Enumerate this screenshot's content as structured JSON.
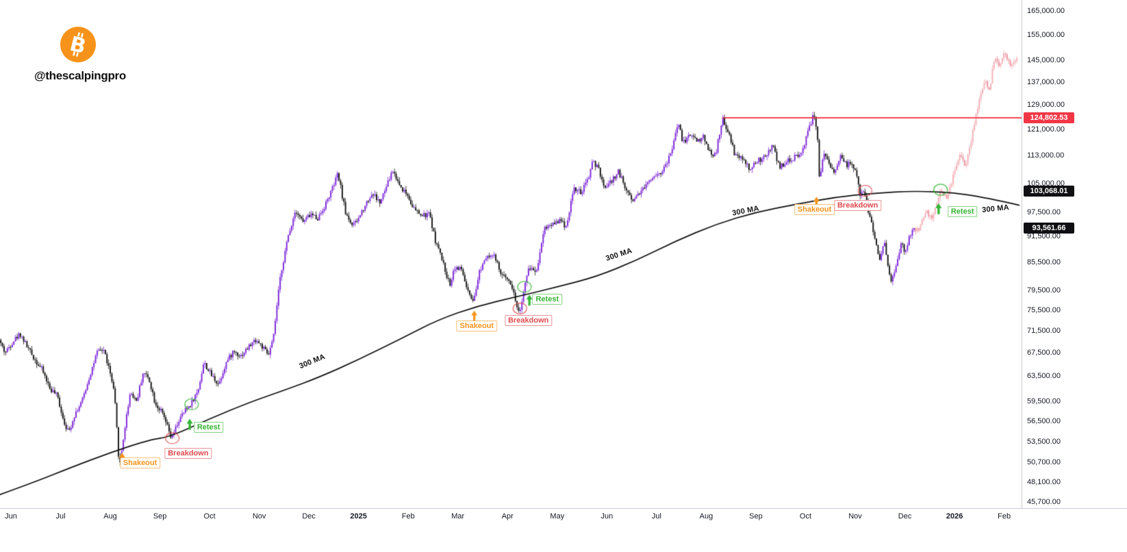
{
  "header": {
    "handle": "@thescalpingpro",
    "logo": {
      "icon": "bitcoin-icon",
      "color": "#f7931a",
      "glyph_color": "#ffffff"
    }
  },
  "chart_data": {
    "type": "candlestick",
    "scale": "log",
    "description": "Bitcoin daily price with 300 MA, Shakeout / Breakdown / Retest annotations and a projected pink path",
    "x_axis": {
      "labels": [
        {
          "text": "Jun",
          "m": 0
        },
        {
          "text": "Jul",
          "m": 1
        },
        {
          "text": "Aug",
          "m": 2
        },
        {
          "text": "Sep",
          "m": 3
        },
        {
          "text": "Oct",
          "m": 4
        },
        {
          "text": "Nov",
          "m": 5
        },
        {
          "text": "Dec",
          "m": 6
        },
        {
          "text": "2025",
          "m": 7,
          "bold": true
        },
        {
          "text": "Feb",
          "m": 8
        },
        {
          "text": "Mar",
          "m": 9
        },
        {
          "text": "Apr",
          "m": 10
        },
        {
          "text": "May",
          "m": 11
        },
        {
          "text": "Jun",
          "m": 12
        },
        {
          "text": "Jul",
          "m": 13
        },
        {
          "text": "Aug",
          "m": 14
        },
        {
          "text": "Sep",
          "m": 15
        },
        {
          "text": "Oct",
          "m": 16
        },
        {
          "text": "Nov",
          "m": 17
        },
        {
          "text": "Dec",
          "m": 18
        },
        {
          "text": "2026",
          "m": 19,
          "bold": true
        },
        {
          "text": "Feb",
          "m": 20
        }
      ]
    },
    "y_axis": {
      "ticks": [
        {
          "label": "165,000.00",
          "value": 165000
        },
        {
          "label": "155,000.00",
          "value": 155000
        },
        {
          "label": "145,000.00",
          "value": 145000
        },
        {
          "label": "137,000.00",
          "value": 137000
        },
        {
          "label": "129,000.00",
          "value": 129000
        },
        {
          "label": "121,000.00",
          "value": 121000
        },
        {
          "label": "113,000.00",
          "value": 113000
        },
        {
          "label": "105,000.00",
          "value": 105000
        },
        {
          "label": "97,500.00",
          "value": 97500
        },
        {
          "label": "91,500.00",
          "value": 91500
        },
        {
          "label": "85,500.00",
          "value": 85500
        },
        {
          "label": "79,500.00",
          "value": 79500
        },
        {
          "label": "75,500.00",
          "value": 75500
        },
        {
          "label": "71,500.00",
          "value": 71500
        },
        {
          "label": "67,500.00",
          "value": 67500
        },
        {
          "label": "63,500.00",
          "value": 63500
        },
        {
          "label": "59,500.00",
          "value": 59500
        },
        {
          "label": "56,500.00",
          "value": 56500
        },
        {
          "label": "53,500.00",
          "value": 53500
        },
        {
          "label": "50,700.00",
          "value": 50700
        },
        {
          "label": "48,100.00",
          "value": 48100
        },
        {
          "label": "45,700.00",
          "value": 45700
        }
      ]
    },
    "price_badges": [
      {
        "label": "124,802.53",
        "value": 124802.53,
        "bg": "#f23645",
        "fg": "#ffffff"
      },
      {
        "label": "103,068.01",
        "value": 103068.01,
        "bg": "#101014",
        "fg": "#ffffff"
      },
      {
        "label": "93,561.66",
        "value": 93561.66,
        "bg": "#101014",
        "fg": "#ffffff"
      }
    ],
    "horizontal_line": {
      "price": 124802.53,
      "from_m": 14.33,
      "color": "#f23645"
    },
    "series": [
      {
        "name": "BTC price history",
        "style": "candles",
        "up_color": "#7c24d8",
        "down_color": "#141414",
        "seed": 42,
        "final_close": 93561.66,
        "anchors": [
          [
            -0.22,
            69800
          ],
          [
            -0.1,
            67500
          ],
          [
            0.05,
            69500
          ],
          [
            0.2,
            71000
          ],
          [
            0.35,
            68500
          ],
          [
            0.5,
            66300
          ],
          [
            0.65,
            64500
          ],
          [
            0.8,
            61500
          ],
          [
            0.95,
            60300
          ],
          [
            1.08,
            56500
          ],
          [
            1.18,
            54800
          ],
          [
            1.3,
            57500
          ],
          [
            1.45,
            59500
          ],
          [
            1.6,
            63500
          ],
          [
            1.75,
            67500
          ],
          [
            1.88,
            68200
          ],
          [
            2.0,
            64500
          ],
          [
            2.1,
            60500
          ],
          [
            2.2,
            49800
          ],
          [
            2.3,
            55000
          ],
          [
            2.42,
            61000
          ],
          [
            2.55,
            59500
          ],
          [
            2.68,
            64200
          ],
          [
            2.8,
            63000
          ],
          [
            2.92,
            59200
          ],
          [
            3.05,
            57800
          ],
          [
            3.15,
            56000
          ],
          [
            3.25,
            53800
          ],
          [
            3.38,
            56300
          ],
          [
            3.5,
            57800
          ],
          [
            3.63,
            59000
          ],
          [
            3.78,
            61000
          ],
          [
            3.9,
            65800
          ],
          [
            4.05,
            63700
          ],
          [
            4.2,
            62200
          ],
          [
            4.35,
            65800
          ],
          [
            4.5,
            67800
          ],
          [
            4.65,
            67000
          ],
          [
            4.8,
            68500
          ],
          [
            4.95,
            69900
          ],
          [
            5.1,
            68300
          ],
          [
            5.2,
            67000
          ],
          [
            5.3,
            70000
          ],
          [
            5.45,
            83000
          ],
          [
            5.6,
            91500
          ],
          [
            5.75,
            98200
          ],
          [
            5.9,
            95000
          ],
          [
            6.05,
            97000
          ],
          [
            6.2,
            96000
          ],
          [
            6.35,
            99500
          ],
          [
            6.5,
            104000
          ],
          [
            6.6,
            107800
          ],
          [
            6.75,
            97500
          ],
          [
            6.9,
            94000
          ],
          [
            7.0,
            95500
          ],
          [
            7.15,
            99500
          ],
          [
            7.3,
            102500
          ],
          [
            7.45,
            99800
          ],
          [
            7.6,
            105000
          ],
          [
            7.7,
            108800
          ],
          [
            7.85,
            104500
          ],
          [
            8.0,
            102000
          ],
          [
            8.15,
            98000
          ],
          [
            8.3,
            96500
          ],
          [
            8.45,
            97000
          ],
          [
            8.55,
            91000
          ],
          [
            8.7,
            86000
          ],
          [
            8.85,
            80500
          ],
          [
            8.95,
            84500
          ],
          [
            9.1,
            83800
          ],
          [
            9.2,
            79500
          ],
          [
            9.33,
            76600
          ],
          [
            9.45,
            83500
          ],
          [
            9.6,
            87400
          ],
          [
            9.75,
            86800
          ],
          [
            9.9,
            82500
          ],
          [
            10.05,
            82000
          ],
          [
            10.15,
            78500
          ],
          [
            10.25,
            74700
          ],
          [
            10.35,
            79500
          ],
          [
            10.45,
            84500
          ],
          [
            10.6,
            83500
          ],
          [
            10.75,
            93500
          ],
          [
            10.9,
            94500
          ],
          [
            11.05,
            95500
          ],
          [
            11.2,
            94000
          ],
          [
            11.35,
            103800
          ],
          [
            11.5,
            102500
          ],
          [
            11.65,
            106500
          ],
          [
            11.72,
            111700
          ],
          [
            11.85,
            109000
          ],
          [
            11.95,
            104000
          ],
          [
            12.1,
            105500
          ],
          [
            12.25,
            108500
          ],
          [
            12.4,
            103500
          ],
          [
            12.55,
            100500
          ],
          [
            12.65,
            102500
          ],
          [
            12.8,
            104500
          ],
          [
            12.95,
            107300
          ],
          [
            13.1,
            108200
          ],
          [
            13.2,
            110000
          ],
          [
            13.3,
            113500
          ],
          [
            13.45,
            123000
          ],
          [
            13.55,
            117000
          ],
          [
            13.7,
            119500
          ],
          [
            13.85,
            117500
          ],
          [
            13.95,
            118800
          ],
          [
            14.1,
            114000
          ],
          [
            14.2,
            113000
          ],
          [
            14.35,
            124300
          ],
          [
            14.45,
            120500
          ],
          [
            14.6,
            113000
          ],
          [
            14.75,
            112000
          ],
          [
            14.9,
            108800
          ],
          [
            15.05,
            111500
          ],
          [
            15.2,
            112500
          ],
          [
            15.35,
            116000
          ],
          [
            15.5,
            109500
          ],
          [
            15.65,
            111500
          ],
          [
            15.8,
            112500
          ],
          [
            15.95,
            114300
          ],
          [
            16.1,
            122500
          ],
          [
            16.2,
            126200
          ],
          [
            16.26,
            118000
          ],
          [
            16.3,
            105000
          ],
          [
            16.38,
            113500
          ],
          [
            16.5,
            110000
          ],
          [
            16.6,
            107500
          ],
          [
            16.72,
            113800
          ],
          [
            16.85,
            110000
          ],
          [
            16.95,
            111200
          ],
          [
            17.05,
            107000
          ],
          [
            17.12,
            101500
          ],
          [
            17.2,
            103100
          ],
          [
            17.3,
            96500
          ],
          [
            17.4,
            92000
          ],
          [
            17.5,
            86000
          ],
          [
            17.6,
            90500
          ],
          [
            17.68,
            84000
          ],
          [
            17.75,
            81500
          ],
          [
            17.85,
            84500
          ],
          [
            17.95,
            90500
          ],
          [
            18.02,
            87500
          ],
          [
            18.1,
            91000
          ],
          [
            18.2,
            93561.66
          ]
        ]
      },
      {
        "name": "Projected path",
        "style": "candles",
        "up_color": "#f4aeb5",
        "down_color": "#ec929c",
        "seed": 7,
        "anchors": [
          [
            18.2,
            93561.66
          ],
          [
            18.3,
            93000
          ],
          [
            18.44,
            97800
          ],
          [
            18.58,
            95500
          ],
          [
            18.72,
            103300
          ],
          [
            18.86,
            100800
          ],
          [
            19.0,
            107600
          ],
          [
            19.13,
            113500
          ],
          [
            19.23,
            110000
          ],
          [
            19.34,
            116500
          ],
          [
            19.45,
            126000
          ],
          [
            19.55,
            133000
          ],
          [
            19.64,
            137500
          ],
          [
            19.72,
            134000
          ],
          [
            19.82,
            146000
          ],
          [
            19.92,
            142500
          ],
          [
            20.03,
            148000
          ],
          [
            20.14,
            142800
          ],
          [
            20.25,
            145000
          ]
        ]
      }
    ],
    "ma300": {
      "name": "300 MA",
      "color": "#0d0d0d",
      "current_value": 103068.01,
      "anchors": [
        [
          -0.22,
          46600
        ],
        [
          0.5,
          48200
        ],
        [
          1.2,
          50000
        ],
        [
          2.0,
          52000
        ],
        [
          2.8,
          53800
        ],
        [
          3.2,
          54200
        ],
        [
          4.0,
          56800
        ],
        [
          4.8,
          59300
        ],
        [
          5.5,
          61200
        ],
        [
          6.2,
          63300
        ],
        [
          7.0,
          66300
        ],
        [
          7.8,
          69800
        ],
        [
          8.6,
          73600
        ],
        [
          9.4,
          76300
        ],
        [
          10.2,
          78200
        ],
        [
          11.0,
          80200
        ],
        [
          11.8,
          82400
        ],
        [
          12.6,
          86000
        ],
        [
          13.4,
          90500
        ],
        [
          14.2,
          94500
        ],
        [
          15.0,
          97500
        ],
        [
          15.8,
          99500
        ],
        [
          16.6,
          101400
        ],
        [
          17.4,
          102500
        ],
        [
          18.2,
          103068.01
        ],
        [
          19.0,
          102600
        ],
        [
          19.6,
          101300
        ],
        [
          20.1,
          99900
        ],
        [
          20.3,
          99300
        ]
      ]
    },
    "ma_labels": [
      {
        "text": "300 MA",
        "m": 6.07,
        "price": 66000,
        "angle": -22
      },
      {
        "text": "300 MA",
        "m": 12.25,
        "price": 87200,
        "angle": -18
      },
      {
        "text": "300 MA",
        "m": 14.8,
        "price": 97800,
        "angle": -11
      },
      {
        "text": "300 MA",
        "m": 19.83,
        "price": 98300,
        "angle": -6
      }
    ],
    "events": [
      {
        "type": "shakeout",
        "label": "Shakeout",
        "color": "#f7941d",
        "arrow": {
          "m": 2.24,
          "price": 52000
        },
        "label_pos": {
          "m": 2.6,
          "price": 50600
        }
      },
      {
        "type": "breakdown",
        "label": "Breakdown",
        "color": "#e04a50",
        "circle": {
          "m": 3.25,
          "price": 54000
        },
        "label_pos": {
          "m": 3.57,
          "price": 51900
        }
      },
      {
        "type": "retest",
        "label": "Retest",
        "color": "#33b533",
        "arrow": {
          "m": 3.6,
          "price": 56800
        },
        "circle": {
          "m": 3.64,
          "price": 59000
        },
        "label_pos": {
          "m": 3.98,
          "price": 55600
        }
      },
      {
        "type": "shakeout",
        "label": "Shakeout",
        "color": "#f7941d",
        "arrow": {
          "m": 9.33,
          "price": 75400
        },
        "label_pos": {
          "m": 9.38,
          "price": 72400
        }
      },
      {
        "type": "breakdown",
        "label": "Breakdown",
        "color": "#e04a50",
        "circle": {
          "m": 10.25,
          "price": 75800
        },
        "label_pos": {
          "m": 10.42,
          "price": 73400
        }
      },
      {
        "type": "retest",
        "label": "Retest",
        "color": "#33b533",
        "arrow": {
          "m": 10.44,
          "price": 78600
        },
        "circle": {
          "m": 10.34,
          "price": 80200
        },
        "label_pos": {
          "m": 10.8,
          "price": 77600
        }
      },
      {
        "type": "shakeout",
        "label": "Shakeout",
        "color": "#f7941d",
        "arrow": {
          "m": 16.22,
          "price": 101500
        },
        "label_pos": {
          "m": 16.18,
          "price": 98200
        }
      },
      {
        "type": "breakdown",
        "label": "Breakdown",
        "color": "#e04a50",
        "circle": {
          "m": 17.2,
          "price": 103100
        },
        "label_pos": {
          "m": 17.05,
          "price": 99300
        }
      },
      {
        "type": "retest",
        "label": "Retest",
        "color": "#33b533",
        "arrow": {
          "m": 18.68,
          "price": 99800
        },
        "circle": {
          "m": 18.72,
          "price": 103400
        },
        "label_pos": {
          "m": 19.16,
          "price": 97600
        }
      }
    ]
  }
}
